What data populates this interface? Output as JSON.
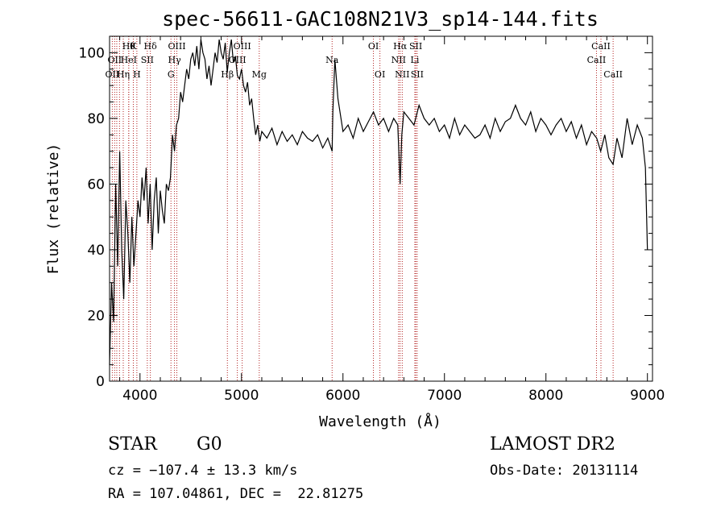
{
  "chart_data": {
    "type": "line",
    "title": "spec-56611-GAC108N21V3_sp14-144.fits",
    "xlabel": "Wavelength (Å)",
    "ylabel": "Flux (relative)",
    "xlim": [
      3700,
      9050
    ],
    "ylim": [
      0,
      105
    ],
    "xticks": [
      4000,
      5000,
      6000,
      7000,
      8000,
      9000
    ],
    "yticks": [
      0,
      20,
      40,
      60,
      80,
      100
    ],
    "grid": false,
    "line_color": "#000000",
    "marker_color": "#b22222",
    "series": [
      {
        "x": [
          3700,
          3720,
          3740,
          3760,
          3780,
          3800,
          3820,
          3840,
          3860,
          3880,
          3900,
          3920,
          3940,
          3960,
          3980,
          4000,
          4020,
          4040,
          4060,
          4080,
          4100,
          4120,
          4140,
          4160,
          4180,
          4200,
          4220,
          4240,
          4260,
          4280,
          4300,
          4320,
          4340,
          4360,
          4380,
          4400,
          4420,
          4440,
          4460,
          4480,
          4500,
          4520,
          4540,
          4560,
          4580,
          4600,
          4620,
          4640,
          4660,
          4680,
          4700,
          4720,
          4740,
          4760,
          4780,
          4800,
          4820,
          4840,
          4860,
          4880,
          4900,
          4920,
          4940,
          4960,
          4980,
          5000,
          5020,
          5040,
          5060,
          5080,
          5100,
          5120,
          5140,
          5160,
          5180,
          5200,
          5250,
          5300,
          5350,
          5400,
          5450,
          5500,
          5550,
          5600,
          5650,
          5700,
          5750,
          5800,
          5850,
          5893,
          5900,
          5920,
          5950,
          6000,
          6050,
          6100,
          6150,
          6200,
          6250,
          6300,
          6350,
          6400,
          6450,
          6500,
          6540,
          6563,
          6580,
          6600,
          6650,
          6700,
          6750,
          6800,
          6850,
          6900,
          6950,
          7000,
          7050,
          7100,
          7150,
          7200,
          7250,
          7300,
          7350,
          7400,
          7450,
          7500,
          7550,
          7600,
          7650,
          7700,
          7750,
          7800,
          7850,
          7900,
          7950,
          8000,
          8050,
          8100,
          8150,
          8200,
          8250,
          8300,
          8350,
          8400,
          8450,
          8500,
          8540,
          8580,
          8620,
          8662,
          8700,
          8750,
          8800,
          8850,
          8900,
          8950,
          8980,
          9000
        ],
        "y": [
          5,
          30,
          18,
          60,
          35,
          70,
          40,
          25,
          55,
          45,
          30,
          50,
          35,
          45,
          55,
          50,
          62,
          55,
          65,
          48,
          60,
          40,
          55,
          62,
          45,
          58,
          52,
          48,
          60,
          58,
          62,
          75,
          70,
          78,
          80,
          88,
          85,
          90,
          95,
          92,
          98,
          100,
          96,
          102,
          95,
          104,
          100,
          98,
          92,
          96,
          90,
          95,
          100,
          97,
          104,
          100,
          98,
          103,
          94,
          100,
          104,
          97,
          99,
          93,
          92,
          95,
          90,
          88,
          91,
          84,
          86,
          80,
          75,
          78,
          73,
          76,
          74,
          77,
          72,
          76,
          73,
          75,
          72,
          76,
          74,
          73,
          75,
          71,
          74,
          70,
          82,
          98,
          86,
          76,
          78,
          74,
          80,
          76,
          79,
          82,
          78,
          80,
          76,
          80,
          78,
          60,
          75,
          82,
          80,
          78,
          84,
          80,
          78,
          80,
          76,
          78,
          74,
          80,
          75,
          78,
          76,
          74,
          75,
          78,
          74,
          80,
          76,
          79,
          80,
          84,
          80,
          78,
          82,
          76,
          80,
          78,
          75,
          78,
          80,
          76,
          79,
          74,
          78,
          72,
          76,
          74,
          70,
          75,
          68,
          66,
          74,
          68,
          80,
          72,
          78,
          74,
          65,
          40
        ],
        "name": ""
      }
    ],
    "line_markers": [
      {
        "x": 3727,
        "label": "OII",
        "row": 2
      },
      {
        "x": 3750,
        "label": "OII",
        "row": 1
      },
      {
        "x": 3771,
        "label": "",
        "row": 0
      },
      {
        "x": 3798,
        "label": "",
        "row": 0
      },
      {
        "x": 3835,
        "label": "Hη",
        "row": 2
      },
      {
        "x": 3889,
        "label": "Hθ",
        "row": 0
      },
      {
        "x": 3889,
        "label": "HeI",
        "row": 1
      },
      {
        "x": 3934,
        "label": "K",
        "row": 0
      },
      {
        "x": 3969,
        "label": "H",
        "row": 2
      },
      {
        "x": 4072,
        "label": "SII",
        "row": 1
      },
      {
        "x": 4102,
        "label": "Hδ",
        "row": 0
      },
      {
        "x": 4305,
        "label": "G",
        "row": 2
      },
      {
        "x": 4340,
        "label": "Hγ",
        "row": 1
      },
      {
        "x": 4363,
        "label": "OIII",
        "row": 0
      },
      {
        "x": 4861,
        "label": "Hβ",
        "row": 2
      },
      {
        "x": 4959,
        "label": "OIII",
        "row": 1
      },
      {
        "x": 5007,
        "label": "OIII",
        "row": 0
      },
      {
        "x": 5175,
        "label": "Mg",
        "row": 2
      },
      {
        "x": 5893,
        "label": "Na",
        "row": 1
      },
      {
        "x": 6300,
        "label": "OI",
        "row": 0
      },
      {
        "x": 6364,
        "label": "OI",
        "row": 2
      },
      {
        "x": 6548,
        "label": "NII",
        "row": 1
      },
      {
        "x": 6563,
        "label": "Hα",
        "row": 0
      },
      {
        "x": 6584,
        "label": "NII",
        "row": 2
      },
      {
        "x": 6708,
        "label": "Li",
        "row": 1
      },
      {
        "x": 6717,
        "label": "SII",
        "row": 0
      },
      {
        "x": 6731,
        "label": "SII",
        "row": 2
      },
      {
        "x": 8498,
        "label": "CaII",
        "row": 1
      },
      {
        "x": 8542,
        "label": "CaII",
        "row": 0
      },
      {
        "x": 8662,
        "label": "CaII",
        "row": 2
      }
    ]
  },
  "info": {
    "object_class": "STAR",
    "subclass": "G0",
    "survey": "LAMOST DR2",
    "cz": "cz = −107.4 ± 13.3 km/s",
    "obs_date": "Obs-Date: 20131114",
    "coords": "RA = 107.04861, DEC =  22.81275"
  }
}
